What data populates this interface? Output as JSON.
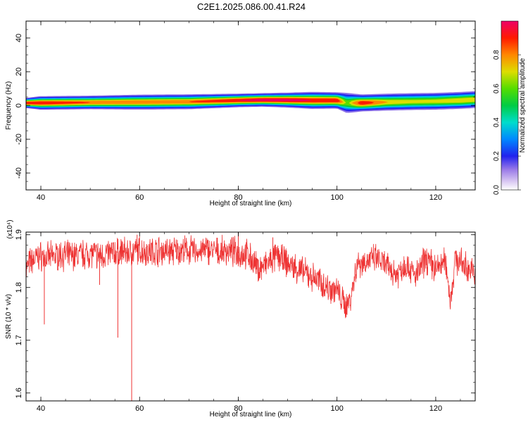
{
  "title": "C2E1.2025.086.00.41.R24",
  "chart_data": [
    {
      "type": "heatmap",
      "xlabel": "Height of straight line (km)",
      "ylabel": "Frequency (Hz)",
      "xlim": [
        37,
        128
      ],
      "ylim": [
        -50,
        50
      ],
      "x_ticks": [
        "40",
        "60",
        "80",
        "100",
        "120"
      ],
      "y_ticks": [
        "40",
        "20",
        "0",
        "-20",
        "-40"
      ],
      "colorbar": {
        "label": "Normalized spectral amplitude",
        "range": [
          0,
          1
        ],
        "ticks": [
          "0.0",
          "0.2",
          "0.4",
          "0.6",
          "0.8"
        ]
      },
      "band": {
        "x": [
          37,
          40,
          50,
          60,
          70,
          80,
          85,
          90,
          95,
          100,
          102,
          105,
          110,
          115,
          120,
          125,
          128
        ],
        "center_freq_hz": [
          1.5,
          1.5,
          1.8,
          2.0,
          2.2,
          3.0,
          3.3,
          3.2,
          3.0,
          3.0,
          1.5,
          1.5,
          2.0,
          2.3,
          2.5,
          3.0,
          3.5
        ],
        "half_width_hz": [
          1.5,
          2.0,
          2.0,
          2.2,
          2.2,
          2.0,
          2.0,
          2.2,
          2.5,
          2.4,
          3.0,
          2.5,
          2.5,
          2.5,
          2.5,
          2.5,
          2.5
        ],
        "peak_amplitude": [
          0.95,
          0.95,
          0.85,
          0.85,
          0.85,
          0.95,
          1.0,
          1.0,
          0.95,
          0.95,
          0.6,
          0.95,
          0.75,
          0.7,
          0.7,
          0.75,
          0.75
        ]
      }
    },
    {
      "type": "line",
      "xlabel": "Height of straight line (km)",
      "ylabel": "SNR (10 * v/v)",
      "y_multiplier": "(x10⁴)",
      "xlim": [
        37,
        128
      ],
      "ylim": [
        1.585,
        1.905
      ],
      "x_ticks": [
        "40",
        "60",
        "80",
        "100",
        "120"
      ],
      "y_ticks": [
        "1.9",
        "1.8",
        "1.7",
        "1.6"
      ],
      "series": [
        {
          "color": "#ee3333",
          "x": [
            37,
            38,
            39,
            40,
            41,
            42,
            44,
            46,
            48,
            50,
            52,
            54,
            56,
            58,
            60,
            62,
            64,
            66,
            68,
            70,
            72,
            74,
            76,
            78,
            80,
            82,
            84,
            86,
            88,
            90,
            92,
            94,
            96,
            98,
            100,
            101,
            102,
            103,
            104,
            106,
            108,
            110,
            112,
            114,
            116,
            118,
            120,
            122,
            123,
            124,
            126,
            128
          ],
          "values": [
            1.835,
            1.85,
            1.855,
            1.86,
            1.855,
            1.858,
            1.862,
            1.86,
            1.862,
            1.865,
            1.86,
            1.865,
            1.868,
            1.866,
            1.87,
            1.868,
            1.87,
            1.868,
            1.87,
            1.87,
            1.868,
            1.872,
            1.866,
            1.87,
            1.865,
            1.862,
            1.835,
            1.845,
            1.86,
            1.845,
            1.835,
            1.825,
            1.815,
            1.8,
            1.795,
            1.775,
            1.765,
            1.79,
            1.845,
            1.85,
            1.855,
            1.84,
            1.825,
            1.845,
            1.82,
            1.855,
            1.835,
            1.85,
            1.775,
            1.855,
            1.84,
            1.825
          ]
        }
      ],
      "spikes": [
        {
          "x": 40.7,
          "value": 1.73
        },
        {
          "x": 51.9,
          "value": 1.805
        },
        {
          "x": 55.6,
          "value": 1.705
        },
        {
          "x": 58.4,
          "value": 1.585
        },
        {
          "x": 59.5,
          "value": 1.9
        },
        {
          "x": 80.0,
          "value": 1.905
        },
        {
          "x": 87.0,
          "value": 1.895
        }
      ]
    }
  ]
}
